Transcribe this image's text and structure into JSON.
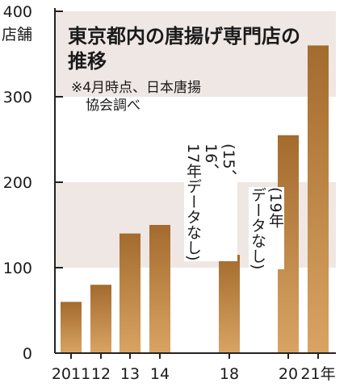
{
  "chart_data": {
    "type": "bar",
    "title": "東京都内の唐揚げ専門店の推移",
    "source": "※4月時点、日本唐揚協会調べ",
    "ylabel": "店舗",
    "ylim": [
      0,
      400
    ],
    "yticks": [
      "0",
      "100",
      "200",
      "300",
      "400"
    ],
    "categories": [
      "2011",
      "12",
      "13",
      "14",
      "18",
      "20",
      "21年"
    ],
    "values": [
      60,
      80,
      140,
      150,
      115,
      255,
      360
    ],
    "annotations": [
      "(15、16、17年データなし)",
      "(19年 データなし)"
    ],
    "colors": {
      "bar_dark": "#a36b2e",
      "bar_light": "#d9a463",
      "band": "#efe7e4"
    }
  }
}
